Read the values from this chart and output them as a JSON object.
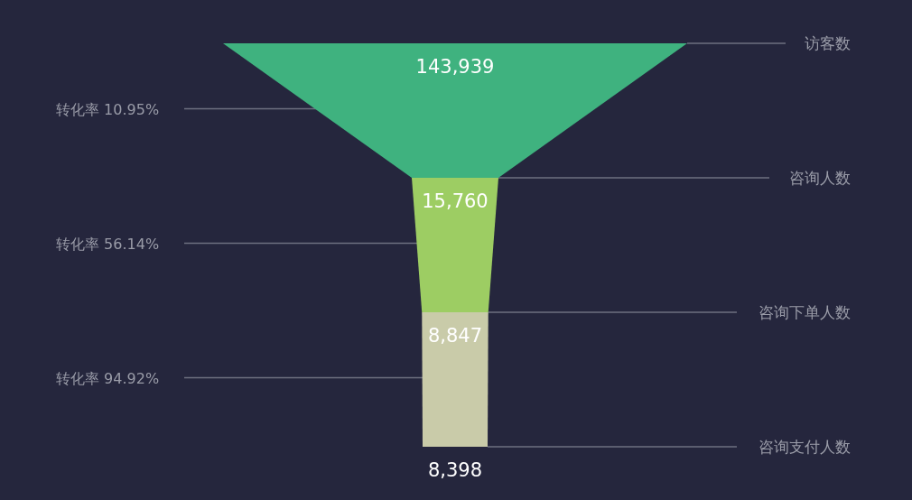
{
  "chart_data": {
    "type": "other",
    "categories": [
      "访客数",
      "咨询人数",
      "咨询下单人数",
      "咨询支付人数"
    ],
    "values": [
      143939,
      15760,
      8847,
      8398
    ],
    "value_labels": [
      "143,939",
      "15,760",
      "8,847",
      "8,398"
    ],
    "colors": [
      "#3fb27f",
      "#9dcd63",
      "#c9cba9",
      "#c9cba9"
    ],
    "annotations": [
      "转化率 10.95%",
      "转化率 56.14%",
      "转化率 94.92%"
    ]
  }
}
